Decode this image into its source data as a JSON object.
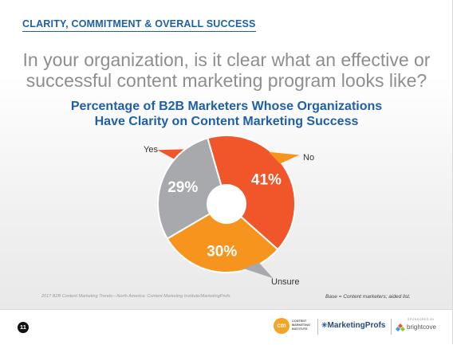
{
  "section_title": "CLARITY, COMMITMENT & OVERALL SUCCESS",
  "question": {
    "line1": "In your organization, is it clear what an effective or",
    "line2": "successful content marketing program looks like?"
  },
  "chart_data": {
    "type": "pie",
    "donut": true,
    "title": "Percentage of B2B Marketers Whose Organizations Have Clarity on Content Marketing Success",
    "title_lines": [
      "Percentage of B2B Marketers Whose Organizations",
      "Have Clarity on Content Marketing Success"
    ],
    "slices": [
      {
        "label": "Yes",
        "value": 41,
        "display": "41%",
        "color": "#f0562a"
      },
      {
        "label": "No",
        "value": 30,
        "display": "30%",
        "color": "#f7941d"
      },
      {
        "label": "Unsure",
        "value": 29,
        "display": "29%",
        "color": "#a7a9ac"
      }
    ]
  },
  "footer": {
    "source": "2017 B2B Content Marketing Trends—North America: Content Marketing Institute/MarketingProfs",
    "base": "Base = Content marketers; aided list.",
    "page_number": "11"
  },
  "logos": {
    "cmi_mark": "cm",
    "cmi_text": [
      "CONTENT",
      "MARKETING",
      "INSTITUTE"
    ],
    "marketingprofs_mark": "✳",
    "marketingprofs": "MarketingProfs",
    "sponsor_label": "SPONSORED BY",
    "brightcove": "brightcove"
  },
  "colors": {
    "accent_blue": "#1f5fa8",
    "question_gray": "#8e8e8e"
  }
}
